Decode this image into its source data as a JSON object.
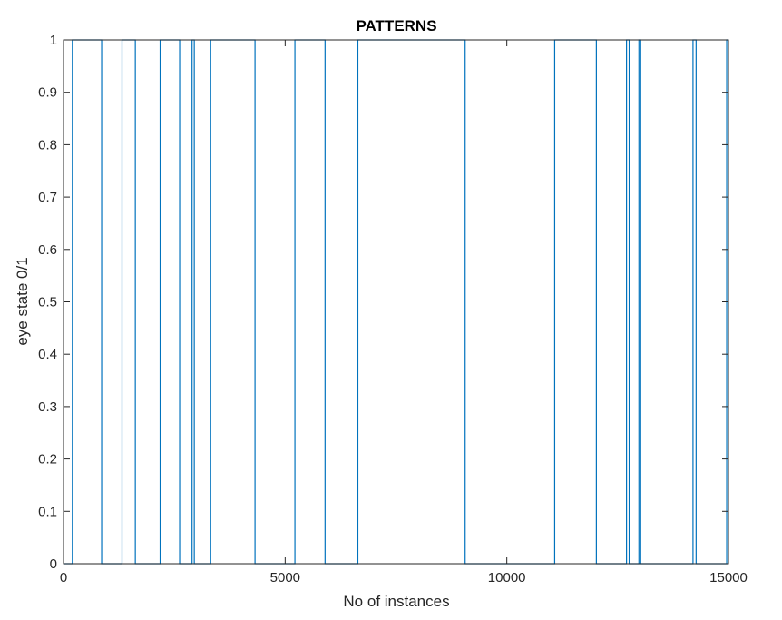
{
  "chart_data": {
    "type": "line",
    "title": "PATTERNS",
    "xlabel": "No of instances",
    "ylabel": "eye state 0/1",
    "xlim": [
      0,
      15000
    ],
    "ylim": [
      0,
      1
    ],
    "xticks": [
      0,
      5000,
      10000,
      15000
    ],
    "xtick_labels": [
      "0",
      "5000",
      "10000",
      "15000"
    ],
    "yticks": [
      0,
      0.1,
      0.2,
      0.3,
      0.4,
      0.5,
      0.6,
      0.7,
      0.8,
      0.9,
      1
    ],
    "ytick_labels": [
      "0",
      "0.1",
      "0.2",
      "0.3",
      "0.4",
      "0.5",
      "0.6",
      "0.7",
      "0.8",
      "0.9",
      "1"
    ],
    "grid": false,
    "series": [
      {
        "color": "#0072bd",
        "x": [
          0,
          200,
          200,
          860,
          860,
          1320,
          1320,
          1620,
          1620,
          2180,
          2180,
          2620,
          2620,
          2900,
          2900,
          2950,
          2950,
          3320,
          3320,
          4320,
          4320,
          5220,
          5220,
          5900,
          5900,
          6640,
          6640,
          9060,
          9060,
          11080,
          11080,
          12020,
          12020,
          12700,
          12700,
          12760,
          12760,
          12980,
          12980,
          13020,
          13020,
          14200,
          14200,
          14270,
          14270,
          14960,
          14960,
          14980
        ],
        "y": [
          0,
          0,
          1,
          1,
          0,
          0,
          1,
          1,
          0,
          0,
          1,
          1,
          0,
          0,
          1,
          1,
          0,
          0,
          1,
          1,
          0,
          0,
          1,
          1,
          0,
          0,
          1,
          1,
          0,
          0,
          1,
          1,
          0,
          0,
          1,
          1,
          0,
          0,
          1,
          1,
          0,
          0,
          1,
          1,
          0,
          0,
          1,
          1
        ]
      }
    ]
  }
}
